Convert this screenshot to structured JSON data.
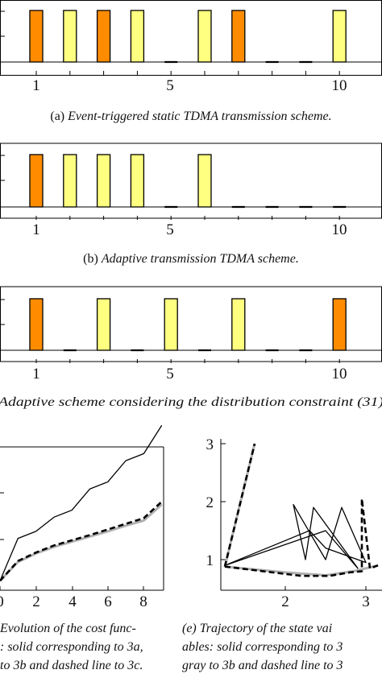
{
  "colors": {
    "orange": "#ff8c00",
    "yellow": "#ffff80",
    "gray": "#b0b0b0",
    "black": "#000000"
  },
  "chart_data": [
    {
      "type": "bar",
      "x": [
        1,
        2,
        3,
        4,
        5,
        6,
        7,
        8,
        9,
        10
      ],
      "values": [
        1,
        1,
        1,
        1,
        0,
        1,
        1,
        0,
        0,
        1
      ],
      "bar_colors": [
        "orange",
        "yellow",
        "orange",
        "yellow",
        "none",
        "yellow",
        "orange",
        "none",
        "none",
        "yellow"
      ],
      "xticks": [
        "1",
        "5",
        "10"
      ],
      "caption_prefix": "(a)",
      "caption_text": "Event-triggered static TDMA transmission scheme."
    },
    {
      "type": "bar",
      "x": [
        1,
        2,
        3,
        4,
        5,
        6,
        7,
        8,
        9,
        10
      ],
      "values": [
        1,
        1,
        1,
        1,
        0,
        1,
        0,
        0,
        0,
        0
      ],
      "bar_colors": [
        "orange",
        "yellow",
        "yellow",
        "yellow",
        "none",
        "yellow",
        "none",
        "none",
        "none",
        "none"
      ],
      "xticks": [
        "1",
        "5",
        "10"
      ],
      "caption_prefix": "(b)",
      "caption_text": "Adaptive transmission TDMA scheme."
    },
    {
      "type": "bar",
      "x": [
        1,
        2,
        3,
        4,
        5,
        6,
        7,
        8,
        9,
        10
      ],
      "values": [
        1,
        0,
        1,
        0,
        1,
        0,
        1,
        0,
        0,
        1
      ],
      "bar_colors": [
        "orange",
        "none",
        "yellow",
        "none",
        "yellow",
        "none",
        "yellow",
        "none",
        "none",
        "orange"
      ],
      "xticks": [
        "1",
        "5",
        "10"
      ],
      "caption_line": "Adaptive scheme considering the distribution constraint (31)"
    },
    {
      "type": "line",
      "xlim": [
        0,
        9
      ],
      "ylim": [
        0,
        3.5
      ],
      "xticks": [
        "0",
        "2",
        "4",
        "6",
        "8"
      ],
      "series": [
        {
          "style": "solid",
          "x": [
            0,
            1,
            2,
            3,
            4,
            5,
            6,
            7,
            8,
            9
          ],
          "y": [
            0.2,
            1.1,
            1.25,
            1.55,
            1.7,
            2.15,
            2.3,
            2.75,
            2.9,
            3.5
          ]
        },
        {
          "style": "gray",
          "x": [
            0,
            1,
            2,
            3,
            4,
            5,
            6,
            7,
            8,
            9
          ],
          "y": [
            0.2,
            0.6,
            0.78,
            0.92,
            1.03,
            1.14,
            1.25,
            1.37,
            1.48,
            1.82
          ]
        },
        {
          "style": "dashed",
          "x": [
            0,
            1,
            2,
            3,
            4,
            5,
            6,
            7,
            8,
            9
          ],
          "y": [
            0.2,
            0.62,
            0.8,
            0.95,
            1.06,
            1.17,
            1.29,
            1.41,
            1.53,
            1.88
          ]
        }
      ],
      "caption_lines": [
        "Evolution of the cost func-",
        ": solid corresponding to 3a,",
        "to 3b and dashed line to 3c."
      ]
    },
    {
      "type": "line",
      "xlim": [
        1.1,
        3.1
      ],
      "ylim": [
        0.5,
        3
      ],
      "xticks": [
        "2",
        "3"
      ],
      "yticks": [
        "1",
        "2",
        "3"
      ],
      "series": [
        {
          "style": "solid",
          "x": [
            1.25,
            2.5,
            2.9,
            2.35,
            2.25,
            2.1,
            2.5,
            2.7,
            3.0,
            2.5,
            2.3,
            1.25
          ],
          "y": [
            0.9,
            1.5,
            0.85,
            1.9,
            1.0,
            1.95,
            1.0,
            1.9,
            0.95,
            1.2,
            1.5,
            0.9
          ]
        },
        {
          "style": "gray",
          "x": [
            1.25,
            2.0,
            2.5,
            2.85,
            3.15
          ],
          "y": [
            0.88,
            0.78,
            0.73,
            0.8,
            0.9
          ]
        },
        {
          "style": "gray",
          "x": [
            1.25,
            1.62
          ],
          "y": [
            0.88,
            3.0
          ]
        },
        {
          "style": "dashed",
          "x": [
            1.25,
            1.62
          ],
          "y": [
            0.88,
            3.0
          ]
        },
        {
          "style": "dashed",
          "x": [
            1.25,
            2.2,
            2.55,
            2.8,
            2.95,
            2.95,
            3.05,
            3.15
          ],
          "y": [
            0.88,
            0.72,
            0.72,
            0.78,
            0.8,
            2.05,
            0.85,
            0.9
          ]
        }
      ],
      "caption_lines": [
        "(e) Trajectory of the state vai",
        "ables: solid corresponding to 3",
        "gray to 3b and dashed line to 3"
      ]
    }
  ]
}
